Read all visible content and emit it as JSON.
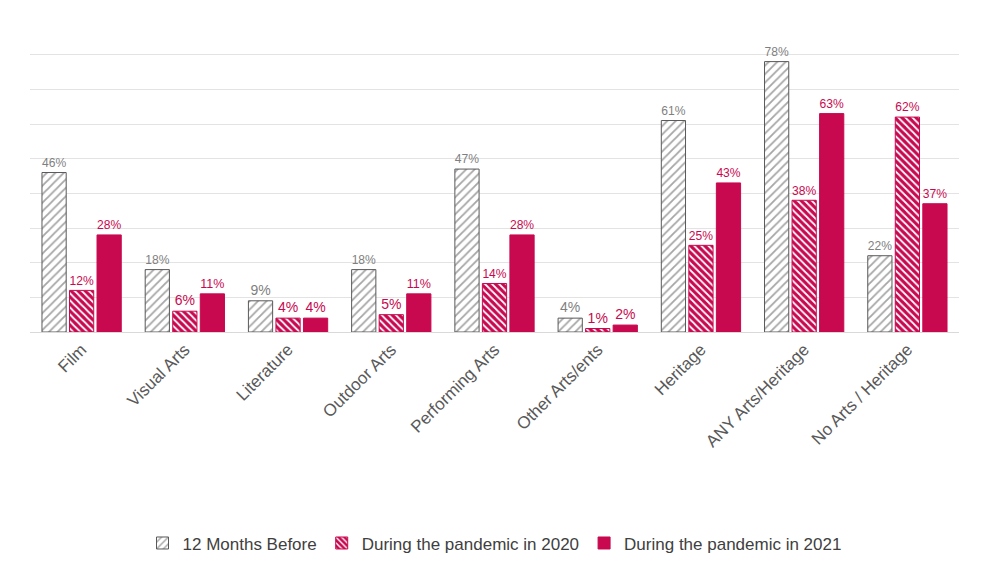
{
  "chart_data": {
    "type": "bar",
    "categories": [
      "Film",
      "Visual Arts",
      "Literature",
      "Outdoor Arts",
      "Performing Arts",
      "Other Arts/ents",
      "Heritage",
      "ANY Arts/Heritage",
      "No Arts / Heritage"
    ],
    "series": [
      {
        "name": "12 Months Before",
        "color": "#a6a6a6",
        "marker": "hatch",
        "values": [
          46,
          18,
          9,
          18,
          47,
          4,
          61,
          78,
          22
        ],
        "value_labels": [
          "46%",
          "18%",
          "9%",
          "18%",
          "47%",
          "4%",
          "61%",
          "78%",
          "22%"
        ]
      },
      {
        "name": "During the pandemic in 2020",
        "color": "#c8094f",
        "marker": "crosshatch",
        "values": [
          12,
          6,
          4,
          5,
          14,
          1,
          25,
          38,
          62
        ],
        "value_labels": [
          "12%",
          "6%",
          "4%",
          "5%",
          "14%",
          "1%",
          "25%",
          "38%",
          "62%"
        ]
      },
      {
        "name": "During the pandemic in 2021",
        "color": "#c8094f",
        "marker": "solid",
        "values": [
          28,
          11,
          4,
          11,
          28,
          2,
          43,
          63,
          37
        ],
        "value_labels": [
          "28%",
          "11%",
          "4%",
          "11%",
          "28%",
          "2%",
          "43%",
          "63%",
          "37%"
        ]
      }
    ],
    "ylim": [
      0,
      90
    ],
    "yticks": [
      0,
      10,
      20,
      30,
      40,
      50,
      60,
      70,
      80,
      90
    ],
    "grid": true,
    "tick_labels": "x",
    "data_labels": true,
    "legend": "bottom"
  }
}
